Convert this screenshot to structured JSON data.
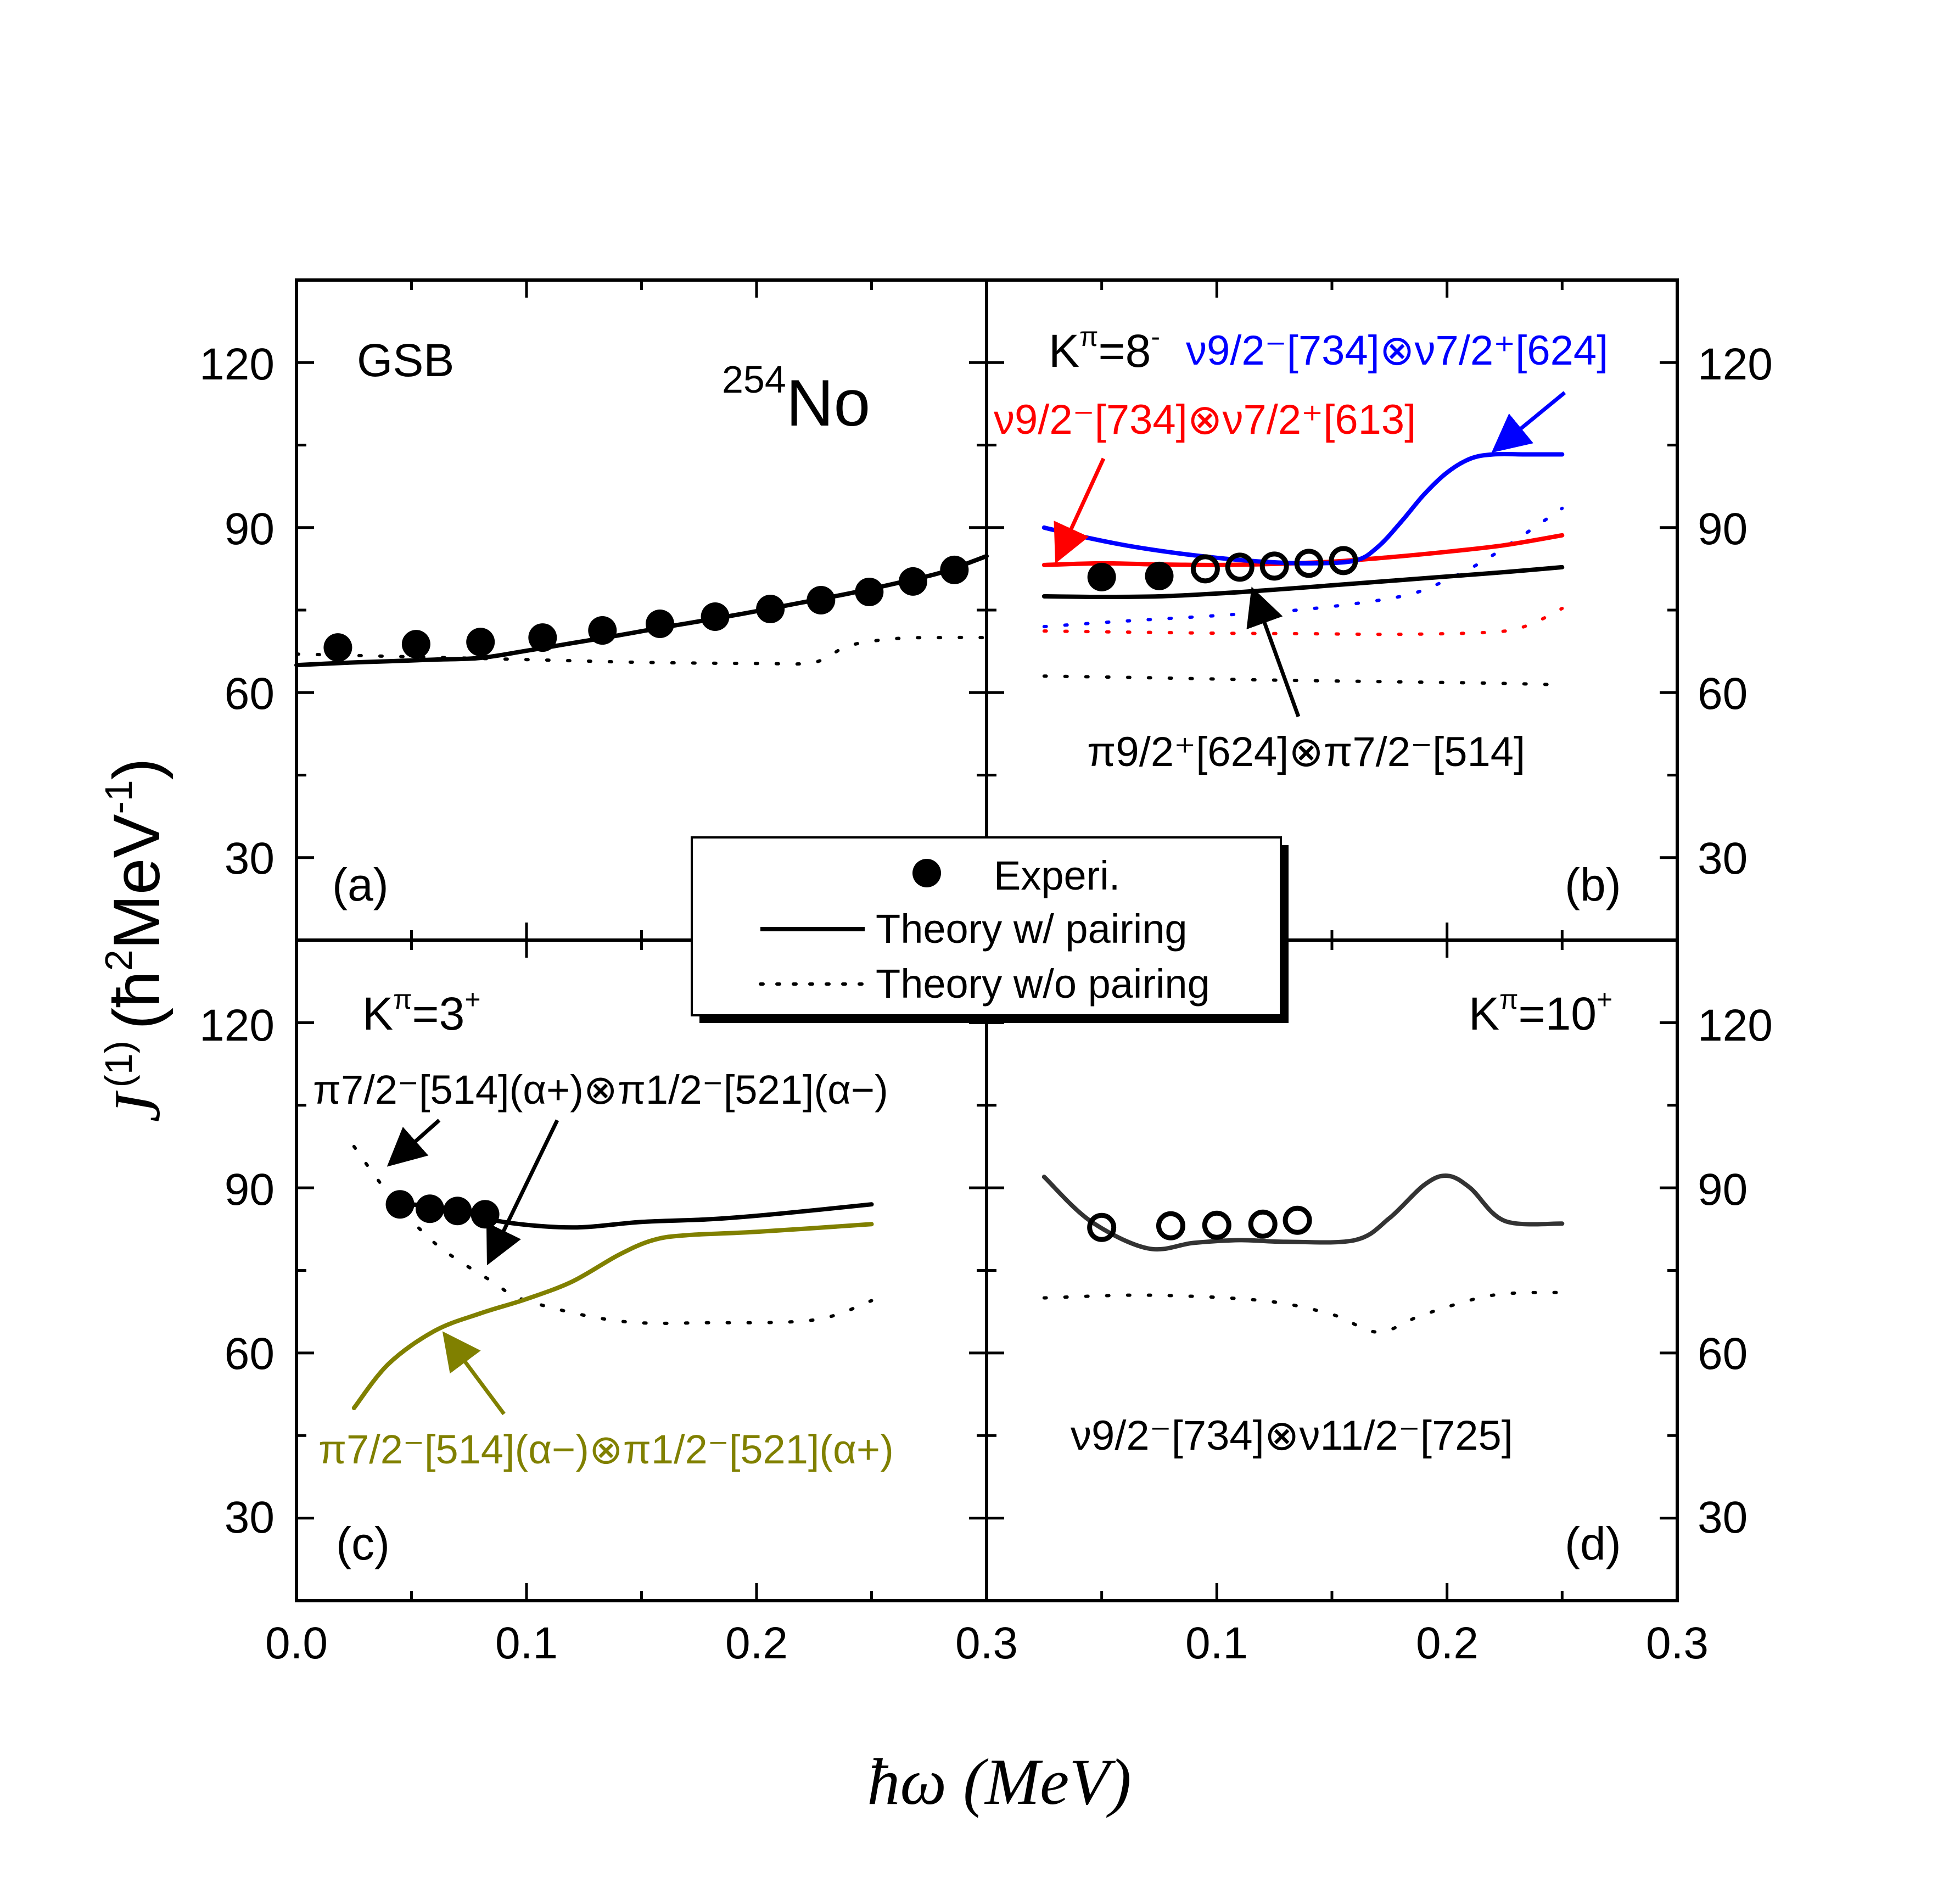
{
  "chart_data": {
    "type": "scatter",
    "nucleus": {
      "mass": "254",
      "symbol": "No"
    },
    "xlabel": "ħω (MeV)",
    "ylabel": {
      "main": "J",
      "superscript": "(1)",
      "units_open": "(ħ",
      "units_sup1": "2",
      "units_mid": "MeV",
      "units_sup2": "-1",
      "units_close": ")"
    },
    "xlim": [
      0.0,
      0.3
    ],
    "ylim": [
      15,
      135
    ],
    "x_ticks": [
      "0.0",
      "0.1",
      "0.2",
      "0.3"
    ],
    "x_ticks_right": [
      "0.1",
      "0.2",
      "0.3"
    ],
    "y_ticks": [
      "30",
      "60",
      "90",
      "120"
    ],
    "legend": {
      "placement": "center",
      "entries": [
        {
          "label": "Experi.",
          "style": "filled-circle"
        },
        {
          "label": "Theory w/ pairing",
          "style": "solid-line"
        },
        {
          "label": "Theory w/o pairing",
          "style": "dotted-line"
        }
      ]
    },
    "colors": {
      "black": "#000000",
      "red": "#ff0000",
      "blue": "#0000ff",
      "olive": "#808000",
      "darkgray": "#333333"
    },
    "panels": [
      {
        "id": "a",
        "tag": "(a)",
        "title": "GSB",
        "experiment_filled": {
          "x": [
            0.018,
            0.052,
            0.08,
            0.107,
            0.133,
            0.158,
            0.182,
            0.206,
            0.228,
            0.249,
            0.268,
            0.286
          ],
          "y": [
            68.2,
            68.8,
            69.2,
            70.0,
            71.3,
            72.5,
            73.8,
            75.2,
            76.8,
            78.3,
            80.2,
            82.3
          ]
        },
        "theory_pairing": {
          "color": "#000000",
          "x": [
            0.0,
            0.02,
            0.04,
            0.06,
            0.08,
            0.1,
            0.12,
            0.14,
            0.16,
            0.18,
            0.2,
            0.22,
            0.24,
            0.26,
            0.28,
            0.3
          ],
          "y": [
            65.0,
            65.4,
            65.7,
            66.0,
            66.3,
            67.6,
            69.0,
            70.4,
            71.9,
            73.3,
            74.8,
            76.4,
            78.0,
            79.8,
            81.8,
            84.8
          ]
        },
        "theory_no_pairing": {
          "color": "#000000",
          "x": [
            0.0,
            0.05,
            0.1,
            0.15,
            0.2,
            0.225,
            0.24,
            0.26,
            0.28,
            0.3
          ],
          "y": [
            67.0,
            66.5,
            66.0,
            65.5,
            65.3,
            65.5,
            68.5,
            69.8,
            70.0,
            70.0
          ]
        }
      },
      {
        "id": "b",
        "tag": "(b)",
        "title_base": "K",
        "title_sup": "π",
        "title_rest": "=8",
        "title_sup2": "-",
        "experiment_filled": {
          "x": [
            0.05,
            0.075
          ],
          "y": [
            81.0,
            81.2
          ]
        },
        "experiment_open": {
          "x": [
            0.095,
            0.11,
            0.125,
            0.14,
            0.155
          ],
          "y": [
            82.5,
            82.8,
            83.0,
            83.5,
            84.0
          ]
        },
        "theory_pairing": [
          {
            "config": "π9/2⁺[624]⊗π7/2⁻[514]",
            "color": "#000000",
            "x": [
              0.025,
              0.05,
              0.075,
              0.1,
              0.125,
              0.15,
              0.175,
              0.2,
              0.225,
              0.25
            ],
            "y": [
              77.5,
              77.4,
              77.5,
              78.0,
              78.7,
              79.5,
              80.3,
              81.1,
              81.9,
              82.8
            ]
          },
          {
            "config": "ν9/2⁻[734]⊗ν7/2⁺[613]",
            "color": "#ff0000",
            "x": [
              0.025,
              0.05,
              0.075,
              0.1,
              0.125,
              0.15,
              0.175,
              0.2,
              0.225,
              0.25
            ],
            "y": [
              83.2,
              83.5,
              83.3,
              83.2,
              83.4,
              83.8,
              84.6,
              85.6,
              86.8,
              88.6
            ]
          },
          {
            "config": "ν9/2⁻[734]⊗ν7/2⁺[624]",
            "color": "#0000ff",
            "x": [
              0.025,
              0.04,
              0.06,
              0.08,
              0.1,
              0.12,
              0.14,
              0.16,
              0.17,
              0.18,
              0.19,
              0.2,
              0.21,
              0.22,
              0.235,
              0.25
            ],
            "y": [
              90.0,
              88.5,
              86.8,
              85.5,
              84.5,
              83.8,
              83.5,
              84.0,
              86.5,
              91.0,
              96.0,
              100.0,
              102.5,
              103.3,
              103.3,
              103.3
            ]
          }
        ],
        "theory_no_pairing": [
          {
            "color": "#000000",
            "x": [
              0.025,
              0.07,
              0.12,
              0.17,
              0.22,
              0.25
            ],
            "y": [
              63.0,
              62.7,
              62.3,
              62.0,
              61.7,
              61.4
            ]
          },
          {
            "color": "#ff0000",
            "x": [
              0.025,
              0.06,
              0.1,
              0.14,
              0.18,
              0.22,
              0.235,
              0.25
            ],
            "y": [
              71.2,
              71.0,
              70.8,
              70.7,
              70.6,
              71.0,
              72.2,
              75.3
            ]
          },
          {
            "color": "#0000ff",
            "x": [
              0.025,
              0.06,
              0.1,
              0.14,
              0.18,
              0.2,
              0.22,
              0.25
            ],
            "y": [
              72.0,
              73.0,
              74.0,
              75.2,
              77.5,
              80.5,
              85.0,
              93.5
            ]
          }
        ],
        "annotations": [
          {
            "text": "ν9/2⁻[734]⊗ν7/2⁺[624]",
            "color": "#0000ff"
          },
          {
            "text": "ν9/2⁻[734]⊗ν7/2⁺[613]",
            "color": "#ff0000"
          },
          {
            "text": "π9/2⁺[624]⊗π7/2⁻[514]",
            "color": "#000000"
          }
        ]
      },
      {
        "id": "c",
        "tag": "(c)",
        "title_base": "K",
        "title_sup": "π",
        "title_rest": "=3",
        "title_sup2": "+",
        "experiment_filled": {
          "x": [
            0.045,
            0.058,
            0.07,
            0.082
          ],
          "y": [
            87.0,
            86.2,
            85.8,
            85.2
          ]
        },
        "theory_pairing": [
          {
            "config": "π7/2⁻[514](α+)⊗π1/2⁻[521](α−)",
            "color": "#000000",
            "x": [
              0.045,
              0.07,
              0.09,
              0.12,
              0.15,
              0.18,
              0.21,
              0.25
            ],
            "y": [
              87.2,
              86.0,
              83.8,
              82.8,
              83.8,
              84.3,
              85.3,
              87.0
            ]
          },
          {
            "config": "π7/2⁻[514](α−)⊗π1/2⁻[521](α+)",
            "color": "#808000",
            "x": [
              0.025,
              0.04,
              0.06,
              0.08,
              0.1,
              0.12,
              0.14,
              0.155,
              0.17,
              0.2,
              0.25
            ],
            "y": [
              50.0,
              58.0,
              64.0,
              67.2,
              69.8,
              73.0,
              77.8,
              80.5,
              81.4,
              82.0,
              83.4
            ]
          }
        ],
        "theory_no_pairing": [
          {
            "color": "#000000",
            "x": [
              0.025,
              0.04,
              0.06,
              0.085,
              0.1,
              0.14,
              0.18,
              0.225,
              0.25
            ],
            "y": [
              97.5,
              89.0,
              80.0,
              73.0,
              69.5,
              65.8,
              65.5,
              66.0,
              69.5
            ]
          }
        ],
        "annotations": [
          {
            "text": "π7/2⁻[514](α+)⊗π1/2⁻[521](α−)",
            "color": "#000000"
          },
          {
            "text": "π7/2⁻[514](α−)⊗π1/2⁻[521](α+)",
            "color": "#808000"
          }
        ]
      },
      {
        "id": "d",
        "tag": "(d)",
        "title_base": "K",
        "title_sup": "π",
        "title_rest": "=10",
        "title_sup2": "+",
        "experiment_open": {
          "x": [
            0.05,
            0.08,
            0.1,
            0.12,
            0.135
          ],
          "y": [
            82.8,
            83.1,
            83.2,
            83.4,
            84.1
          ]
        },
        "theory_pairing": [
          {
            "config": "ν9/2⁻[734]⊗ν11/2⁻[725]",
            "color": "#333333",
            "x": [
              0.025,
              0.045,
              0.07,
              0.09,
              0.11,
              0.13,
              0.16,
              0.175,
              0.19,
              0.2,
              0.21,
              0.225,
              0.25
            ],
            "y": [
              92.0,
              84.0,
              79.0,
              80.0,
              80.5,
              80.2,
              80.5,
              84.5,
              90.5,
              92.2,
              90.0,
              84.0,
              83.5
            ]
          }
        ],
        "theory_no_pairing": [
          {
            "color": "#000000",
            "x": [
              0.025,
              0.07,
              0.12,
              0.15,
              0.17,
              0.19,
              0.22,
              0.25
            ],
            "y": [
              70.0,
              70.5,
              69.5,
              67.0,
              63.8,
              67.0,
              70.5,
              71.0
            ]
          }
        ],
        "annotations": [
          {
            "text": "ν9/2⁻[734]⊗ν11/2⁻[725]",
            "color": "#000000"
          }
        ]
      }
    ]
  }
}
